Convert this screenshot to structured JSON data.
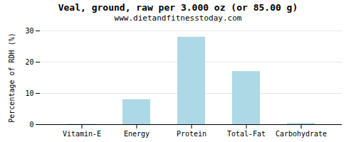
{
  "chart_data": {
    "type": "bar",
    "title": "Veal, ground, raw per 3.000 oz (or 85.00 g)",
    "subtitle": "www.dietandfitnesstoday.com",
    "ylabel": "Percentage of RDH (%)",
    "categories": [
      "Vitamin-E",
      "Energy",
      "Protein",
      "Total-Fat",
      "Carbohydrate"
    ],
    "values": [
      0.15,
      8.0,
      28.0,
      17.0,
      0.4
    ],
    "color": "#add8e6",
    "ylim": [
      0,
      30
    ],
    "yticks": [
      0,
      10,
      20,
      30
    ],
    "grid": true
  }
}
